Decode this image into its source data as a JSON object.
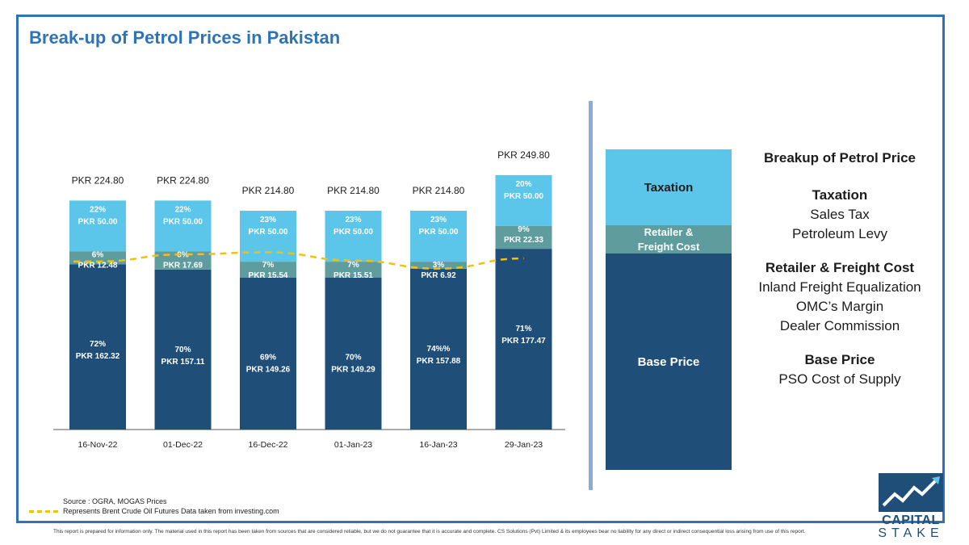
{
  "page": {
    "title": "Break-up of Petrol Prices in Pakistan"
  },
  "chart_data": {
    "type": "bar",
    "stacked": true,
    "title": "",
    "xlabel": "",
    "ylabel": "",
    "categories": [
      "16-Nov-22",
      "01-Dec-22",
      "16-Dec-22",
      "01-Jan-23",
      "16-Jan-23",
      "29-Jan-23"
    ],
    "totals": [
      "PKR 224.80",
      "PKR 224.80",
      "PKR 214.80",
      "PKR 214.80",
      "PKR 214.80",
      "PKR 249.80"
    ],
    "total_values": [
      224.8,
      224.8,
      214.8,
      214.8,
      214.8,
      249.8
    ],
    "series": [
      {
        "key": "base",
        "values": [
          162.32,
          157.11,
          149.26,
          149.29,
          157.88,
          177.47
        ],
        "value_labels": [
          "PKR 162.32",
          "PKR 157.11",
          "PKR 149.26",
          "PKR 149.29",
          "PKR 157.88",
          "PKR 177.47"
        ],
        "pct_labels": [
          "72%",
          "70%",
          "69%",
          "70%",
          "74%%",
          "71%"
        ],
        "color": "#1f4e79"
      },
      {
        "key": "retail",
        "values": [
          12.48,
          17.69,
          15.54,
          15.51,
          6.92,
          22.33
        ],
        "value_labels": [
          "PKR 12.48",
          "PKR 17.69",
          "PKR 15.54",
          "PKR 15.51",
          "PKR 6.92",
          "PKR 22.33"
        ],
        "pct_labels": [
          "6%",
          "8%",
          "7%",
          "7%",
          "3%",
          "9%"
        ],
        "color": "#5e9c9e"
      },
      {
        "key": "tax",
        "values": [
          50.0,
          50.0,
          50.0,
          50.0,
          50.0,
          50.0
        ],
        "value_labels": [
          "PKR 50.00",
          "PKR 50.00",
          "PKR 50.00",
          "PKR 50.00",
          "PKR 50.00",
          "PKR 50.00"
        ],
        "pct_labels": [
          "22%",
          "22%",
          "23%",
          "23%",
          "23%",
          "20%"
        ],
        "color": "#5bc5ea"
      }
    ],
    "overlay_line": {
      "style": "dashed",
      "color": "#f2c10f",
      "values": [
        165,
        172,
        174,
        166,
        158,
        168
      ]
    },
    "ylim": [
      0,
      260
    ],
    "grid": false,
    "legend": "bottom-left"
  },
  "legend_box": {
    "taxation": "Taxation",
    "retail": "Retailer &\nFreight Cost",
    "base": "Base Price"
  },
  "breakup": {
    "title": "Breakup of Petrol Price",
    "groups": [
      {
        "title": "Taxation",
        "items": [
          "Sales Tax",
          "Petroleum Levy"
        ]
      },
      {
        "title": "Retailer & Freight Cost",
        "items": [
          "Inland Freight Equalization",
          "OMC’s Margin",
          "Dealer Commission"
        ]
      },
      {
        "title": "Base Price",
        "items": [
          "PSO Cost of Supply"
        ]
      }
    ]
  },
  "footer": {
    "source": "Source : OGRA, MOGAS Prices",
    "line_note": "Represents Brent Crude Oil Futures Data taken from investing.com",
    "disclaimer": "This report is prepared for information only. The material used in this report has been taken from sources that are considered reliable, but we do not guarantee that it is accurate and complete. CS Solutions (Pvt) Limited & its employees bear no liability for any direct or indirect consequential loss arising from use of this report."
  },
  "logo": {
    "line1": "CAPITAL",
    "line2": "STAKE",
    "colors": {
      "primary": "#1f4e79",
      "accent": "#5bc5ea"
    }
  }
}
